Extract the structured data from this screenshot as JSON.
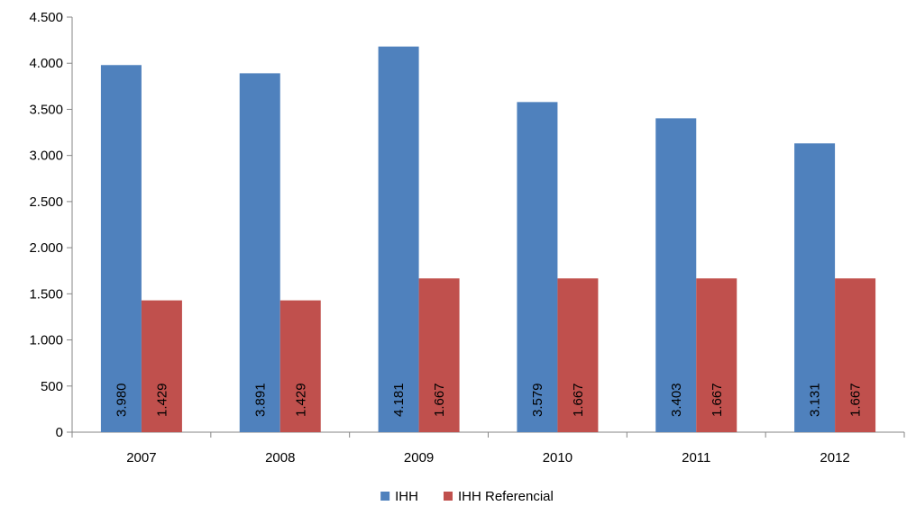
{
  "chart_data": {
    "type": "bar",
    "title": "",
    "xlabel": "",
    "ylabel": "",
    "categories": [
      "2007",
      "2008",
      "2009",
      "2010",
      "2011",
      "2012"
    ],
    "series": [
      {
        "name": "IHH",
        "color": "#4F81BD",
        "values": [
          3980,
          3891,
          4181,
          3579,
          3403,
          3131
        ],
        "labels": [
          "3.980",
          "3.891",
          "4.181",
          "3.579",
          "3.403",
          "3.131"
        ]
      },
      {
        "name": "IHH Referencial",
        "color": "#C0504D",
        "values": [
          1429,
          1429,
          1667,
          1667,
          1667,
          1667
        ],
        "labels": [
          "1.429",
          "1.429",
          "1.667",
          "1.667",
          "1.667",
          "1.667"
        ]
      }
    ],
    "ylim": [
      0,
      4500
    ],
    "yticks": [
      0,
      500,
      1000,
      1500,
      2000,
      2500,
      3000,
      3500,
      4000,
      4500
    ],
    "ytick_labels": [
      "0",
      "500",
      "1.000",
      "1.500",
      "2.000",
      "2.500",
      "3.000",
      "3.500",
      "4.000",
      "4.500"
    ],
    "grid": false,
    "legend": "bottom-center"
  }
}
